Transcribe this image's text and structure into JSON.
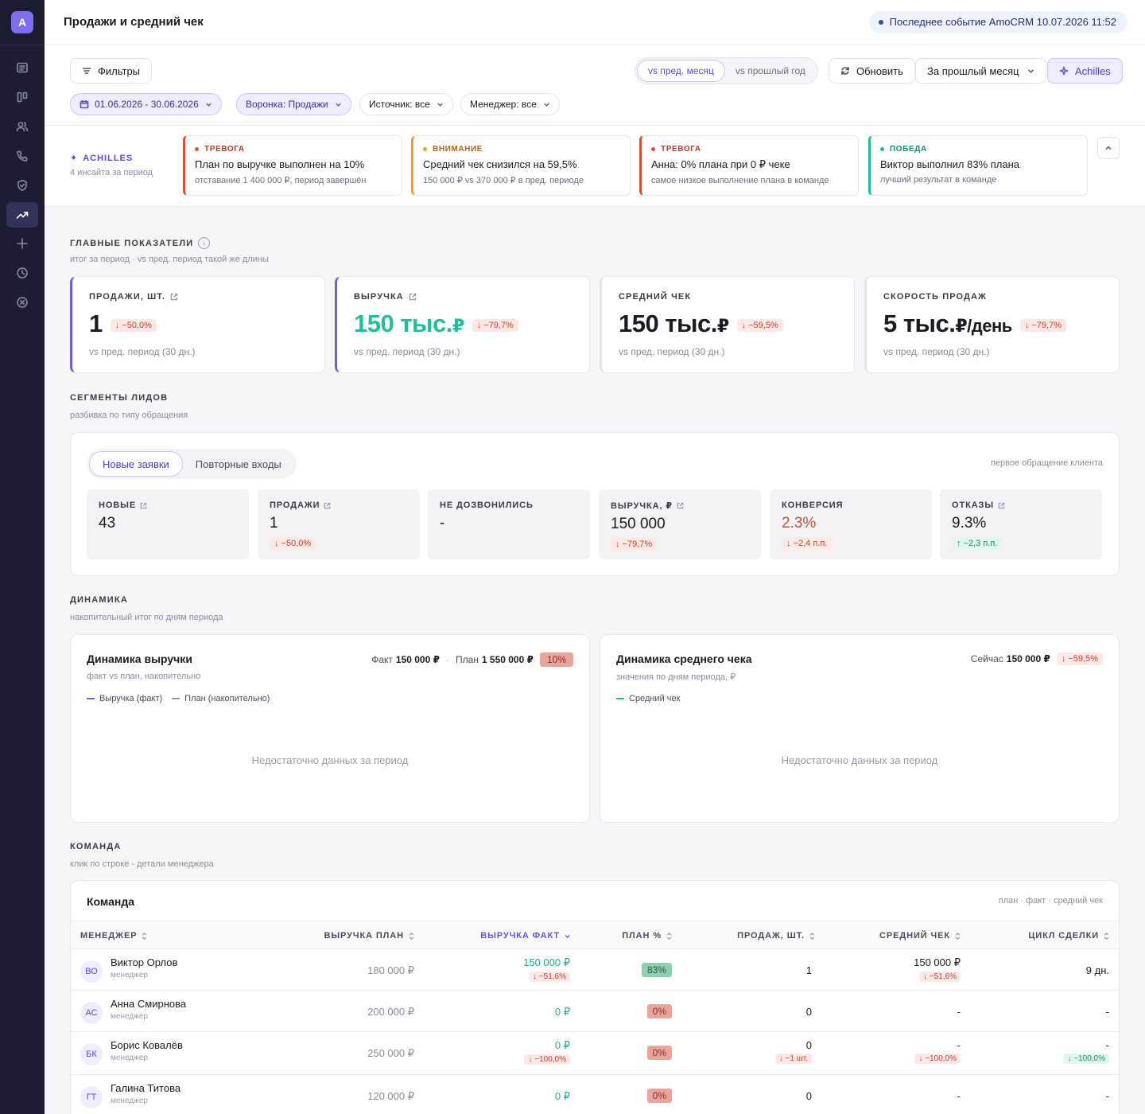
{
  "app": {
    "logo_letter": "A"
  },
  "header": {
    "title": "Продажи и средний чек",
    "event": "Последнее событие AmoCRM 10.07.2026 11:52"
  },
  "toolbar": {
    "filters": "Фильтры",
    "compare": [
      "vs пред. месяц",
      "vs прошлый год"
    ],
    "refresh": "Обновить",
    "period": "За прошлый месяц",
    "achilles": "Achilles",
    "chips": {
      "dates": "01.06.2026 - 30.06.2026",
      "funnel": "Воронка: Продажи",
      "source": "Источник: все",
      "manager": "Менеджер: все"
    }
  },
  "insights": {
    "brand": "ACHILLES",
    "subtitle": "4 инсайта за период",
    "cards": [
      {
        "tag": "ТРЕВОГА",
        "title": "План по выручке выполнен на 10%",
        "text": "отставание 1 400 000 ₽, период завершён"
      },
      {
        "tag": "ВНИМАНИЕ",
        "title": "Средний чек снизился на 59,5%",
        "text": "150 000 ₽ vs 370 000 ₽ в пред. периоде"
      },
      {
        "tag": "ТРЕВОГА",
        "title": "Анна: 0% плана при 0 ₽ чеке",
        "text": "самое низкое выполнение плана в команде"
      },
      {
        "tag": "ПОБЕДА",
        "title": "Виктор выполнил 83% плана",
        "text": "лучший результат в команде"
      }
    ]
  },
  "kpi_section": {
    "title": "ГЛАВНЫЕ ПОКАЗАТЕЛИ",
    "info": "i",
    "subtitle": "итог за период · vs пред. период такой же длины"
  },
  "kpis": [
    {
      "label": "ПРОДАЖИ, ШТ.",
      "value": "1",
      "unit": "",
      "delta": "↓ −50,0%",
      "foot": "vs пред. период (30 дн.)"
    },
    {
      "label": "ВЫРУЧКА",
      "value": "150 тыс.",
      "unit": "₽",
      "delta": "↓ −79,7%",
      "foot": "vs пред. период (30 дн.)"
    },
    {
      "label": "СРЕДНИЙ ЧЕК",
      "value": "150 тыс.",
      "unit": "₽",
      "delta": "↓ −59,5%",
      "foot": "vs пред. период (30 дн.)"
    },
    {
      "label": "СКОРОСТЬ ПРОДАЖ",
      "value": "5 тыс.",
      "unit": "₽/день",
      "delta": "↓ −79,7%",
      "foot": "vs пред. период (30 дн.)"
    }
  ],
  "segments_section": {
    "title": "СЕГМЕНТЫ ЛИДОВ",
    "subtitle": "разбивка по типу обращения"
  },
  "segments": {
    "tabs": [
      "Новые заявки",
      "Повторные входы"
    ],
    "note": "первое обращение клиента",
    "cards": [
      {
        "label": "НОВЫЕ",
        "value": "43",
        "delta": ""
      },
      {
        "label": "ПРОДАЖИ",
        "value": "1",
        "delta": "↓ −50,0%"
      },
      {
        "label": "НЕ ДОЗВОНИЛИСЬ",
        "value": "-",
        "delta": ""
      },
      {
        "label": "ВЫРУЧКА, ₽",
        "value": "150 000",
        "delta": "↓ −79,7%"
      },
      {
        "label": "КОНВЕРСИЯ",
        "value": "2.3%",
        "delta": "↓ −2,4 п.п."
      },
      {
        "label": "ОТКАЗЫ",
        "value": "9.3%",
        "delta": "↑ −2,3 п.п."
      }
    ]
  },
  "dynamics_section": {
    "title": "ДИНАМИКА",
    "subtitle": "накопительный итог по дням периода"
  },
  "charts": {
    "revenue": {
      "title": "Динамика выручки",
      "subtitle": "факт vs план, накопительно",
      "fact_label": "Факт",
      "fact_value": "150 000 ₽",
      "plan_label": "План",
      "plan_value": "1 550 000 ₽",
      "pct": "10%",
      "legend": [
        "Выручка (факт)",
        "План (накопительно)"
      ],
      "empty": "Недостаточно данных за период"
    },
    "avg_check": {
      "title": "Динамика среднего чека",
      "subtitle": "значения по дням периода, ₽",
      "now_label": "Сейчас",
      "now_value": "150 000 ₽",
      "delta": "↓ −59,5%",
      "legend": [
        "Средний чек"
      ],
      "empty": "Недостаточно данных за период"
    }
  },
  "team_section": {
    "title": "КОМАНДА",
    "subtitle": "клик по строке - детали менеджера"
  },
  "team": {
    "title": "Команда",
    "note": "план · факт · средний чек",
    "columns": [
      "МЕНЕДЖЕР",
      "ВЫРУЧКА ПЛАН",
      "ВЫРУЧКА ФАКТ",
      "ПЛАН %",
      "ПРОДАЖ, ШТ.",
      "СРЕДНИЙ ЧЕК",
      "ЦИКЛ СДЕЛКИ"
    ],
    "rows": [
      {
        "initials": "ВО",
        "name": "Виктор Орлов",
        "role": "менеджер",
        "plan": "180 000 ₽",
        "fact": "150 000 ₽",
        "fact_delta": "↓ −51,6%",
        "pct": "83%",
        "count": "1",
        "count_delta": "",
        "avg": "150 000 ₽",
        "avg_delta": "↓ −51,6%",
        "cycle": "9 дн.",
        "cycle_delta": ""
      },
      {
        "initials": "АС",
        "name": "Анна Смирнова",
        "role": "менеджер",
        "plan": "200 000 ₽",
        "fact": "0 ₽",
        "fact_delta": "",
        "pct": "0%",
        "count": "0",
        "count_delta": "",
        "avg": "-",
        "avg_delta": "",
        "cycle": "-",
        "cycle_delta": ""
      },
      {
        "initials": "БК",
        "name": "Борис Ковалёв",
        "role": "менеджер",
        "plan": "250 000 ₽",
        "fact": "0 ₽",
        "fact_delta": "↓ −100,0%",
        "pct": "0%",
        "count": "0",
        "count_delta": "↓ −1 шт.",
        "avg": "-",
        "avg_delta": "↓ −100,0%",
        "cycle": "-",
        "cycle_delta": "↓ −100,0%"
      },
      {
        "initials": "ГТ",
        "name": "Галина Титова",
        "role": "менеджер",
        "plan": "120 000 ₽",
        "fact": "0 ₽",
        "fact_delta": "",
        "pct": "0%",
        "count": "0",
        "count_delta": "",
        "avg": "-",
        "avg_delta": "",
        "cycle": "-",
        "cycle_delta": ""
      }
    ]
  },
  "colors": {
    "accent": "#6d5ce5",
    "sidebar": "#1d1c30",
    "teal": "#1fbf9c",
    "danger": "#dd4e3c"
  },
  "icons": {
    "sidebar": [
      "list-icon",
      "kanban-icon",
      "users-icon",
      "phone-icon",
      "shield-icon",
      "trend-icon",
      "plus-icon",
      "clock-icon",
      "close-circle-icon"
    ]
  }
}
